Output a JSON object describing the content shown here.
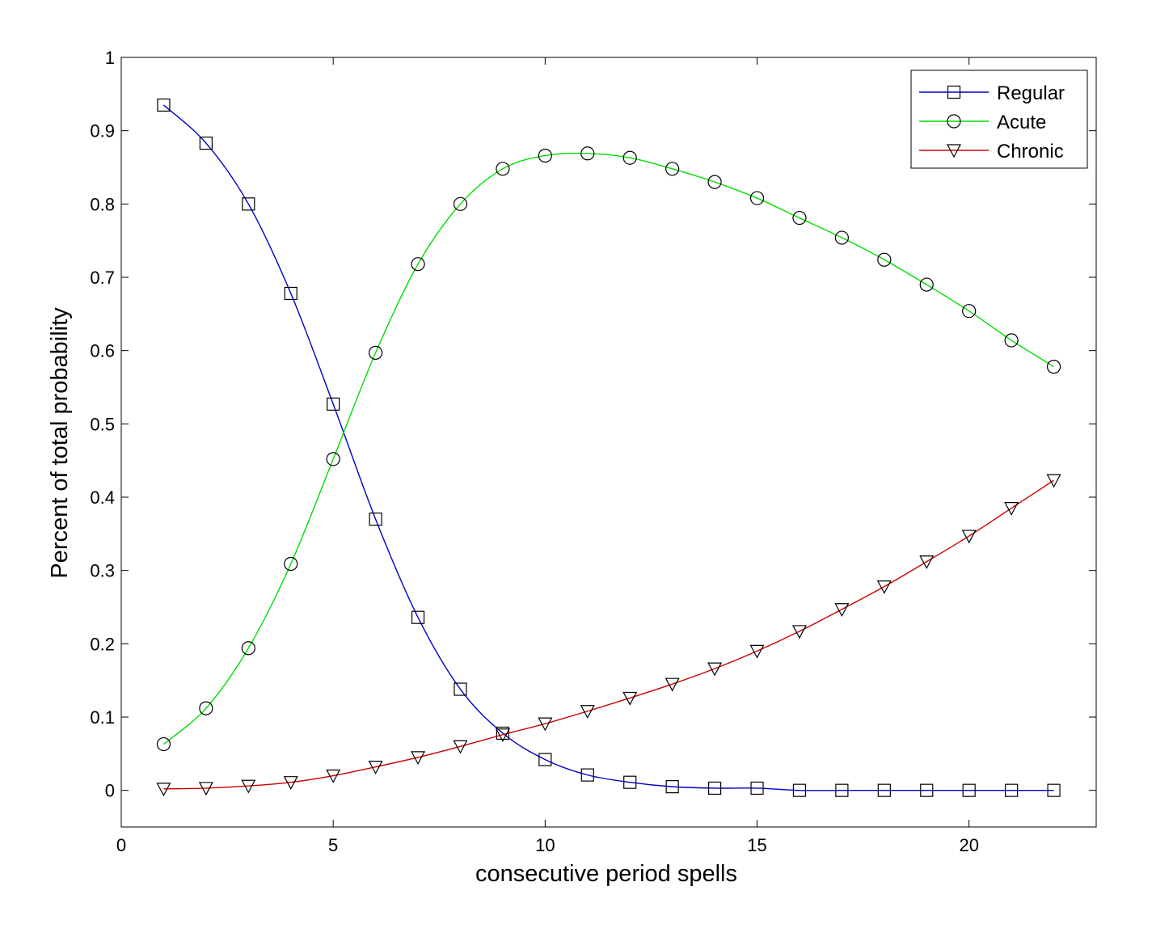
{
  "chart_data": {
    "type": "line",
    "title": "",
    "xlabel": "consecutive period spells",
    "ylabel": "Percent of total probability",
    "xlim": [
      0,
      23
    ],
    "ylim": [
      -0.05,
      1
    ],
    "xticks": [
      0,
      5,
      10,
      15,
      20
    ],
    "yticks": [
      0,
      0.1,
      0.2,
      0.3,
      0.4,
      0.5,
      0.6,
      0.7,
      0.8,
      0.9,
      1
    ],
    "ytick_labels": [
      "0",
      "0.1",
      "0.2",
      "0.3",
      "0.4",
      "0.5",
      "0.6",
      "0.7",
      "0.8",
      "0.9",
      "1"
    ],
    "grid": false,
    "legend_position": "top-right",
    "x": [
      1,
      2,
      3,
      4,
      5,
      6,
      7,
      8,
      9,
      10,
      11,
      12,
      13,
      14,
      15,
      16,
      17,
      18,
      19,
      20,
      21,
      22
    ],
    "series": [
      {
        "name": "Regular",
        "color": "#0000c8",
        "marker": "square",
        "values": [
          0.935,
          0.883,
          0.8,
          0.678,
          0.527,
          0.37,
          0.236,
          0.138,
          0.078,
          0.042,
          0.021,
          0.011,
          0.005,
          0.003,
          0.003,
          0.0,
          0.0,
          0.0,
          0.0,
          0.0,
          0.0,
          0.0
        ]
      },
      {
        "name": "Acute",
        "color": "#00dd00",
        "marker": "circle",
        "values": [
          0.063,
          0.112,
          0.194,
          0.309,
          0.452,
          0.597,
          0.718,
          0.8,
          0.848,
          0.866,
          0.869,
          0.863,
          0.848,
          0.83,
          0.808,
          0.781,
          0.754,
          0.724,
          0.69,
          0.654,
          0.614,
          0.578
        ]
      },
      {
        "name": "Chronic",
        "color": "#cc0000",
        "marker": "triangle-down",
        "values": [
          0.002,
          0.003,
          0.006,
          0.011,
          0.02,
          0.032,
          0.045,
          0.06,
          0.076,
          0.091,
          0.108,
          0.126,
          0.145,
          0.166,
          0.19,
          0.217,
          0.247,
          0.278,
          0.312,
          0.347,
          0.385,
          0.423
        ]
      }
    ]
  }
}
